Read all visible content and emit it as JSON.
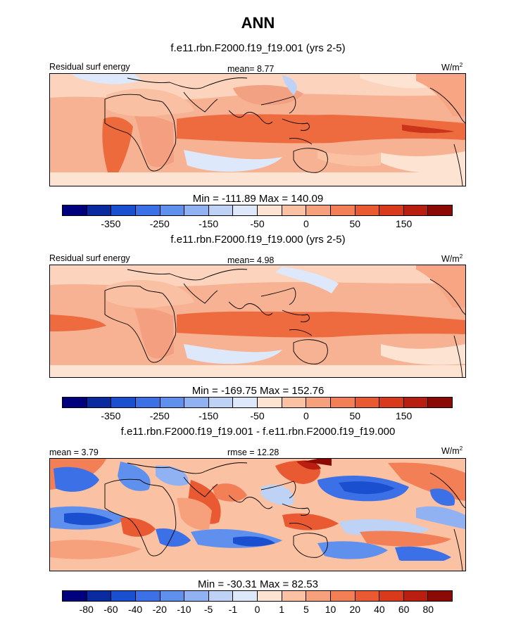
{
  "title": "ANN",
  "units_base": "W/m",
  "units_exp": "2",
  "panels": [
    {
      "title": "f.e11.rbn.F2000.f19_f19.001 (yrs 2-5)",
      "left_label": "Residual surf energy",
      "center_label": "mean=   8.77",
      "stats": "Min = -111.89 Max = 140.09"
    },
    {
      "title": "f.e11.rbn.F2000.f19_f19.000 (yrs 2-5)",
      "left_label": "Residual surf energy",
      "center_label": "mean=   4.98",
      "stats": "Min = -169.75 Max = 152.76"
    },
    {
      "title": "f.e11.rbn.F2000.f19_f19.001 - f.e11.rbn.F2000.f19_f19.000",
      "left_label": "mean =   3.79",
      "center_label": "rmse =  12.28",
      "stats": "Min = -30.31 Max = 82.53"
    }
  ],
  "colorbars": {
    "abs": {
      "colors": [
        "#00007f",
        "#0a2aa0",
        "#1a4fd0",
        "#3b70e6",
        "#6090ee",
        "#90b2f2",
        "#bed2f5",
        "#dde9fa",
        "#fde3d2",
        "#fbc1a3",
        "#f7a07c",
        "#f27f56",
        "#e95a33",
        "#d93a1c",
        "#b81f10",
        "#8c0a06"
      ],
      "labels": [
        "-350",
        "-250",
        "-150",
        "-50",
        "0",
        "50",
        "150"
      ]
    },
    "diff": {
      "colors": [
        "#00007f",
        "#0a2aa0",
        "#1a4fd0",
        "#3b70e6",
        "#6090ee",
        "#90b2f2",
        "#bed2f5",
        "#dde9fa",
        "#fde3d2",
        "#fbc1a3",
        "#f7a07c",
        "#f27f56",
        "#e95a33",
        "#d93a1c",
        "#b81f10",
        "#8c0a06"
      ],
      "labels": [
        "-80",
        "-60",
        "-40",
        "-20",
        "-10",
        "-5",
        "-1",
        "0",
        "1",
        "5",
        "10",
        "20",
        "40",
        "60",
        "80"
      ]
    }
  }
}
